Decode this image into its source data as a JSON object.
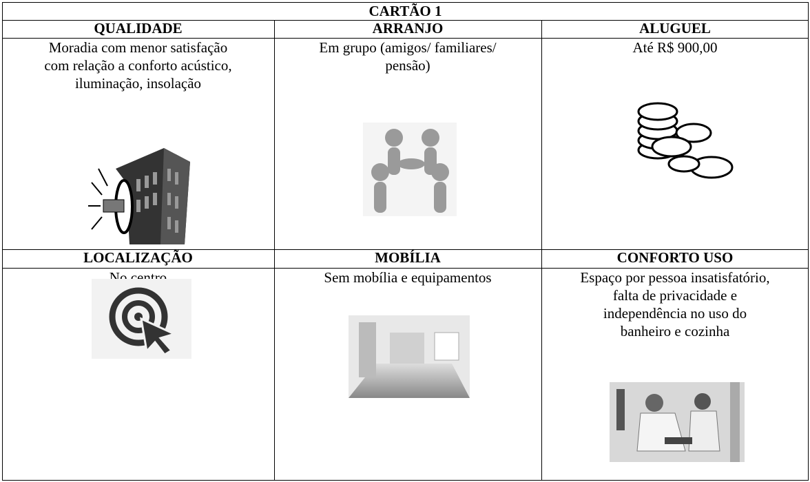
{
  "title": "CARTÃO 1",
  "cells": [
    {
      "heading": "QUALIDADE",
      "lines": [
        "Moradia com menor satisfação",
        "com relação a conforto acústico,",
        "iluminação, insolação"
      ]
    },
    {
      "heading": "ARRANJO",
      "lines": [
        "Em grupo (amigos/ familiares/",
        "pensão)"
      ]
    },
    {
      "heading": "ALUGUEL",
      "lines": [
        "Até R$ 900,00"
      ]
    },
    {
      "heading": "LOCALIZAÇÃO",
      "lines": [
        "No centro"
      ]
    },
    {
      "heading": "MOBÍLIA",
      "lines": [
        "Sem mobília e equipamentos"
      ]
    },
    {
      "heading": "CONFORTO USO",
      "lines": [
        "Espaço por pessoa insatisfatório,",
        "falta de privacidade e",
        "independência no uso do",
        "banheiro e cozinha"
      ]
    }
  ]
}
